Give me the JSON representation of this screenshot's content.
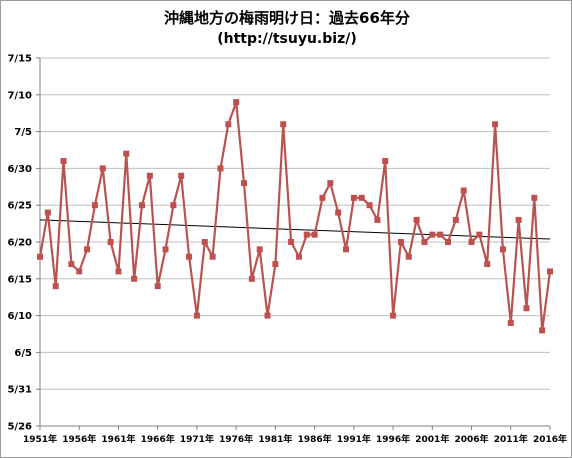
{
  "chart_data": {
    "type": "line",
    "title": "沖縄地方の梅雨明け日：過去66年分",
    "subtitle": "(http://tsuyu.biz/)",
    "x": [
      1951,
      1952,
      1953,
      1954,
      1955,
      1956,
      1957,
      1958,
      1959,
      1960,
      1961,
      1962,
      1963,
      1964,
      1965,
      1966,
      1967,
      1968,
      1969,
      1970,
      1971,
      1972,
      1973,
      1974,
      1975,
      1976,
      1977,
      1978,
      1979,
      1980,
      1981,
      1982,
      1983,
      1984,
      1985,
      1986,
      1987,
      1988,
      1989,
      1990,
      1991,
      1992,
      1993,
      1994,
      1995,
      1996,
      1997,
      1998,
      1999,
      2000,
      2001,
      2002,
      2003,
      2004,
      2005,
      2006,
      2007,
      2008,
      2009,
      2010,
      2011,
      2012,
      2013,
      2014,
      2015,
      2016
    ],
    "series": [
      {
        "values_days_since_5_26": [
          23,
          29,
          19,
          36,
          22,
          21,
          24,
          30,
          35,
          25,
          21,
          37,
          20,
          30,
          34,
          19,
          24,
          30,
          34,
          23,
          15,
          25,
          23,
          35,
          41,
          44,
          33,
          20,
          24,
          15,
          22,
          41,
          25,
          23,
          26,
          26,
          31,
          33,
          29,
          24,
          31,
          31,
          30,
          28,
          36,
          15,
          25,
          23,
          28,
          25,
          26,
          26,
          25,
          28,
          32,
          25,
          26,
          22,
          41,
          24,
          14,
          28,
          16,
          31,
          13,
          21
        ]
      }
    ],
    "trendline": {
      "start_days": 28.0,
      "end_days": 25.4
    },
    "yticks": [
      "5/26",
      "5/31",
      "6/5",
      "6/10",
      "6/15",
      "6/20",
      "6/25",
      "6/30",
      "7/5",
      "7/10",
      "7/15"
    ],
    "xticks": [
      "1951年",
      "1956年",
      "1961年",
      "1966年",
      "1971年",
      "1976年",
      "1981年",
      "1986年",
      "1991年",
      "1996年",
      "2001年",
      "2006年",
      "2011年",
      "2016年"
    ],
    "ylim": [
      0,
      50
    ],
    "grid": true,
    "colors": {
      "line": "#b85450",
      "marker": "#c0504d",
      "trend": "#000000",
      "grid": "#bfbfbf"
    }
  }
}
